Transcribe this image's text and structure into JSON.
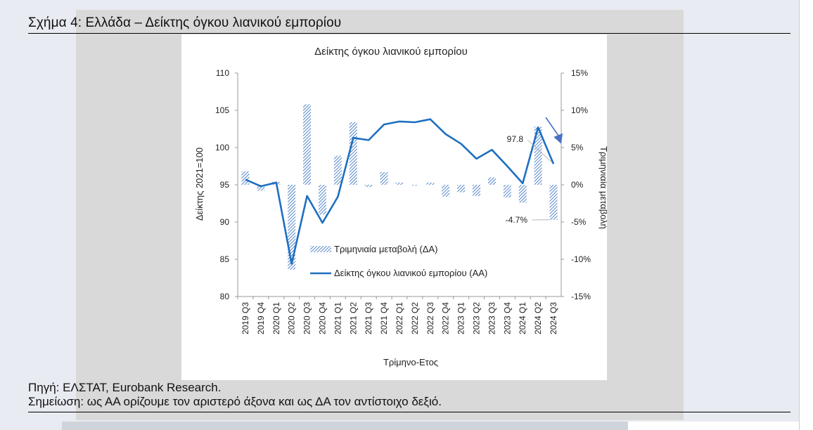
{
  "figure": {
    "caption": "Σχήμα 4: Ελλάδα – Δείκτης όγκου λιανικού εμπορίου",
    "source": "Πηγή: ΕΛΣΤΑΤ, Eurobank Research.",
    "remark": "Σημείωση: ως ΑΑ ορίζουμε τον αριστερό άξονα και ως ΔΑ τον αντίστοιχο δεξιό."
  },
  "colors": {
    "line": "#1f6fbf",
    "bar_hatch": "#4a7fc6",
    "arrow": "#4a72c4",
    "axis": "#999999"
  },
  "chart_data": {
    "type": "bar+line",
    "title": "Δείκτης όγκου λιανικού εμπορίου",
    "xlabel": "Τρίμηνο-Ετος",
    "ylabel_left": "Δείκτης 2021=100",
    "ylabel_right": "Τριμηνιαία μεταβολή",
    "ylim_left": [
      80,
      110
    ],
    "ylim_right": [
      -15,
      15
    ],
    "yticks_left": [
      "80",
      "85",
      "90",
      "95",
      "100",
      "105",
      "110"
    ],
    "yticks_right": [
      "-15%",
      "-10%",
      "-5%",
      "0%",
      "5%",
      "10%",
      "15%"
    ],
    "categories": [
      "2019 Q3",
      "2019 Q4",
      "2020 Q1",
      "2020 Q2",
      "2020 Q3",
      "2020 Q4",
      "2021 Q1",
      "2021 Q2",
      "2021 Q3",
      "2021 Q4",
      "2022 Q1",
      "2022 Q2",
      "2022 Q3",
      "2022 Q4",
      "2023 Q1",
      "2023 Q2",
      "2023 Q3",
      "2023 Q4",
      "2024 Q1",
      "2024 Q2",
      "2024 Q3"
    ],
    "series": [
      {
        "name": "Τριμηνιαία μεταβολή (ΔΑ)",
        "axis": "right",
        "render": "hatched-bar",
        "values": [
          1.8,
          -0.8,
          0.4,
          -11.4,
          10.8,
          -4.0,
          3.9,
          8.4,
          -0.3,
          1.7,
          0.3,
          -0.1,
          0.3,
          -1.6,
          -1.0,
          -1.5,
          1.0,
          -1.7,
          -2.4,
          7.8,
          -4.7
        ]
      },
      {
        "name": "Δείκτης όγκου λιανικού εμπορίου (ΑΑ)",
        "axis": "left",
        "render": "line",
        "values": [
          95.7,
          94.8,
          95.3,
          84.4,
          93.5,
          89.9,
          93.4,
          101.3,
          101.0,
          103.1,
          103.5,
          103.4,
          103.8,
          101.8,
          100.5,
          98.5,
          99.7,
          97.5,
          95.2,
          102.7,
          97.8
        ]
      }
    ],
    "annotations": [
      {
        "text": "97.8",
        "category": "2024 Q3",
        "series": "Δείκτης όγκου λιανικού εμπορίου (ΑΑ)"
      },
      {
        "text": "-4.7%",
        "category": "2024 Q3",
        "series": "Τριμηνιαία μεταβολή (ΔΑ)"
      }
    ],
    "legend": "inside-lower-center",
    "grid": false
  }
}
